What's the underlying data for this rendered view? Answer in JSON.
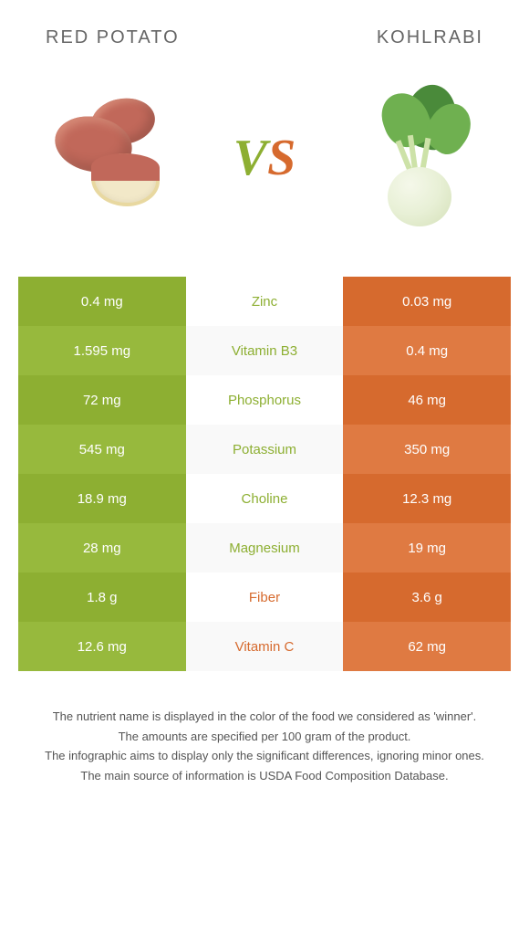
{
  "left": {
    "title": "Red potato"
  },
  "right": {
    "title": "Kohlrabi"
  },
  "colors": {
    "left_cell": "#8daf32",
    "left_cell_alt": "#97b93d",
    "right_cell": "#d66a2e",
    "right_cell_alt": "#df7a42",
    "left_text": "#8daf32",
    "right_text": "#d66a2e"
  },
  "rows": [
    {
      "nutrient": "Zinc",
      "left": "0.4 mg",
      "right": "0.03 mg",
      "winner": "left"
    },
    {
      "nutrient": "Vitamin B3",
      "left": "1.595 mg",
      "right": "0.4 mg",
      "winner": "left"
    },
    {
      "nutrient": "Phosphorus",
      "left": "72 mg",
      "right": "46 mg",
      "winner": "left"
    },
    {
      "nutrient": "Potassium",
      "left": "545 mg",
      "right": "350 mg",
      "winner": "left"
    },
    {
      "nutrient": "Choline",
      "left": "18.9 mg",
      "right": "12.3 mg",
      "winner": "left"
    },
    {
      "nutrient": "Magnesium",
      "left": "28 mg",
      "right": "19 mg",
      "winner": "left"
    },
    {
      "nutrient": "Fiber",
      "left": "1.8 g",
      "right": "3.6 g",
      "winner": "right"
    },
    {
      "nutrient": "Vitamin C",
      "left": "12.6 mg",
      "right": "62 mg",
      "winner": "right"
    }
  ],
  "footer": [
    "The nutrient name is displayed in the color of the food we considered as 'winner'.",
    "The amounts are specified per 100 gram of the product.",
    "The infographic aims to display only the significant differences, ignoring minor ones.",
    "The main source of information is USDA Food Composition Database."
  ],
  "illustration": {
    "potato": {
      "skin": "#c1685a",
      "skin_light": "#d68a77",
      "flesh": "#f2e8c8",
      "flesh_edge": "#e8d8a0"
    },
    "kohlrabi": {
      "bulb": "#e8f0d6",
      "bulb_shadow": "#d4e0b8",
      "leaf_dark": "#4a8a3a",
      "leaf_light": "#6fb050",
      "stem": "#cde2a8"
    }
  }
}
